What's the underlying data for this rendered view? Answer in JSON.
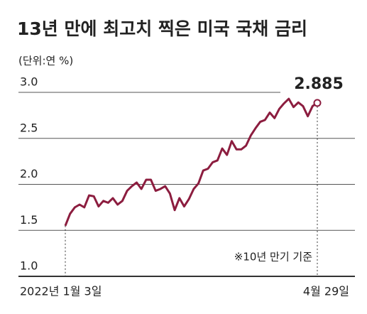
{
  "chart_data": {
    "type": "line",
    "title": "13년 만에 최고치 찍은 미국 국채 금리",
    "unit_label": "(단위:연 %)",
    "note": "※10년 만기 기준",
    "color": "#8c1d3f",
    "categories": [
      "2022년 1월 3일",
      null,
      null,
      null,
      null,
      null,
      null,
      null,
      null,
      null,
      null,
      null,
      null,
      null,
      null,
      null,
      null,
      null,
      null,
      null,
      null,
      null,
      null,
      null,
      null,
      null,
      null,
      null,
      null,
      null,
      null,
      null,
      null,
      null,
      null,
      null,
      null,
      null,
      null,
      null,
      null,
      null,
      null,
      null,
      null,
      null,
      null,
      null,
      null,
      null,
      null,
      null,
      null,
      "4월 29일"
    ],
    "values": [
      1.55,
      1.68,
      1.75,
      1.78,
      1.75,
      1.88,
      1.87,
      1.76,
      1.82,
      1.8,
      1.85,
      1.78,
      1.82,
      1.93,
      1.98,
      2.02,
      1.95,
      2.05,
      2.05,
      1.93,
      1.95,
      1.98,
      1.9,
      1.72,
      1.85,
      1.76,
      1.84,
      1.95,
      2.01,
      2.15,
      2.17,
      2.24,
      2.26,
      2.39,
      2.32,
      2.47,
      2.38,
      2.38,
      2.42,
      2.53,
      2.61,
      2.68,
      2.7,
      2.78,
      2.72,
      2.82,
      2.88,
      2.93,
      2.84,
      2.89,
      2.85,
      2.74,
      2.85,
      2.885
    ],
    "ylim": [
      1,
      3
    ],
    "yticks": [
      {
        "value": 1,
        "label": "1.0"
      },
      {
        "value": 1.5,
        "label": "1.5"
      },
      {
        "value": 2,
        "label": "2.0"
      },
      {
        "value": 2.5,
        "label": "2.5"
      },
      {
        "value": 3,
        "label": "3.0"
      }
    ],
    "grid": true
  }
}
